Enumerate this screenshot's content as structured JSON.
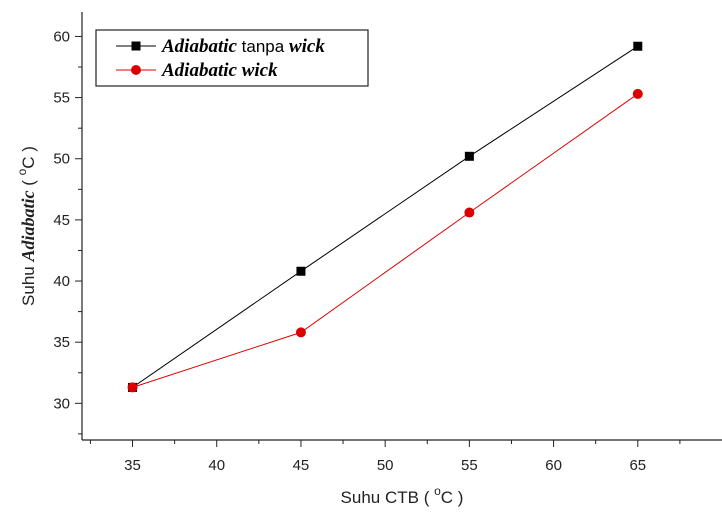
{
  "chart_data": {
    "type": "line",
    "x": [
      35,
      45,
      55,
      65
    ],
    "xlim": [
      32,
      70
    ],
    "ylim": [
      27,
      62
    ],
    "xticks": [
      35,
      40,
      45,
      50,
      55,
      60,
      65
    ],
    "yticks": [
      30,
      35,
      40,
      45,
      50,
      55,
      60
    ],
    "xlabel": {
      "main": "Suhu CTB ( ",
      "sup": "o",
      "tail": "C )"
    },
    "ylabel": {
      "main": "Suhu ",
      "em": "Adiabatic",
      "mid": " ( ",
      "sup": "o",
      "tail": "C )"
    },
    "grid": false,
    "legend_position": "top-left",
    "series": [
      {
        "key": "tanpa-wick",
        "label_parts": [
          {
            "text": "Adiabatic",
            "style": "em"
          },
          {
            "text": " tanpa ",
            "style": "plain"
          },
          {
            "text": "wick",
            "style": "em"
          }
        ],
        "marker": "square",
        "color": "#000000",
        "values": [
          31.3,
          40.8,
          50.2,
          59.2
        ]
      },
      {
        "key": "wick",
        "label_parts": [
          {
            "text": "Adiabatic",
            "style": "em"
          },
          {
            "text": " ",
            "style": "plain"
          },
          {
            "text": "wick",
            "style": "em"
          }
        ],
        "marker": "circle",
        "color": "#dd0000",
        "values": [
          31.3,
          35.8,
          45.6,
          55.3
        ]
      }
    ]
  }
}
